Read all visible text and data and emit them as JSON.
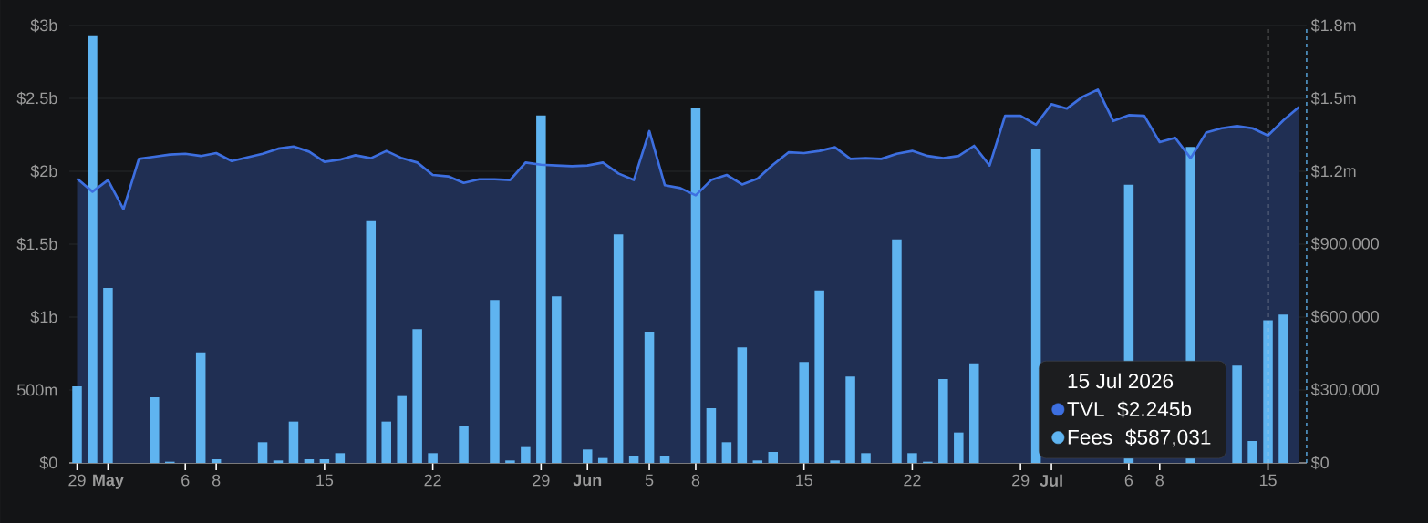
{
  "chart_data": {
    "type": "bar",
    "x": [
      "2026-04-29",
      "2026-04-30",
      "2026-05-01",
      "2026-05-02",
      "2026-05-03",
      "2026-05-04",
      "2026-05-05",
      "2026-05-06",
      "2026-05-07",
      "2026-05-08",
      "2026-05-09",
      "2026-05-10",
      "2026-05-11",
      "2026-05-12",
      "2026-05-13",
      "2026-05-14",
      "2026-05-15",
      "2026-05-16",
      "2026-05-17",
      "2026-05-18",
      "2026-05-19",
      "2026-05-20",
      "2026-05-21",
      "2026-05-22",
      "2026-05-23",
      "2026-05-24",
      "2026-05-25",
      "2026-05-26",
      "2026-05-27",
      "2026-05-28",
      "2026-05-29",
      "2026-05-30",
      "2026-05-31",
      "2026-06-01",
      "2026-06-02",
      "2026-06-03",
      "2026-06-04",
      "2026-06-05",
      "2026-06-06",
      "2026-06-07",
      "2026-06-08",
      "2026-06-09",
      "2026-06-10",
      "2026-06-11",
      "2026-06-12",
      "2026-06-13",
      "2026-06-14",
      "2026-06-15",
      "2026-06-16",
      "2026-06-17",
      "2026-06-18",
      "2026-06-19",
      "2026-06-20",
      "2026-06-21",
      "2026-06-22",
      "2026-06-23",
      "2026-06-24",
      "2026-06-25",
      "2026-06-26",
      "2026-06-27",
      "2026-06-28",
      "2026-06-29",
      "2026-06-30",
      "2026-07-01",
      "2026-07-02",
      "2026-07-03",
      "2026-07-04",
      "2026-07-05",
      "2026-07-06",
      "2026-07-07",
      "2026-07-08",
      "2026-07-09",
      "2026-07-10",
      "2026-07-11",
      "2026-07-12",
      "2026-07-13",
      "2026-07-14",
      "2026-07-15",
      "2026-07-16",
      "2026-07-17"
    ],
    "series": [
      {
        "name": "TVL",
        "type": "area",
        "color": "#3d6fe0",
        "values": [
          1950000000,
          1860000000,
          1940000000,
          1740000000,
          2085000000,
          2100000000,
          2115000000,
          2120000000,
          2105000000,
          2125000000,
          2070000000,
          2095000000,
          2120000000,
          2155000000,
          2170000000,
          2135000000,
          2065000000,
          2080000000,
          2110000000,
          2090000000,
          2140000000,
          2090000000,
          2060000000,
          1975000000,
          1965000000,
          1920000000,
          1945000000,
          1945000000,
          1940000000,
          2060000000,
          2045000000,
          2040000000,
          2035000000,
          2040000000,
          2060000000,
          1985000000,
          1940000000,
          2275000000,
          1905000000,
          1885000000,
          1835000000,
          1940000000,
          1975000000,
          1910000000,
          1950000000,
          2045000000,
          2130000000,
          2125000000,
          2140000000,
          2165000000,
          2085000000,
          2090000000,
          2085000000,
          2120000000,
          2140000000,
          2105000000,
          2090000000,
          2105000000,
          2175000000,
          2040000000,
          2380000000,
          2380000000,
          2320000000,
          2460000000,
          2430000000,
          2510000000,
          2560000000,
          2345000000,
          2385000000,
          2380000000,
          2200000000,
          2230000000,
          2090000000,
          2265000000,
          2295000000,
          2310000000,
          2295000000,
          2245000000,
          2350000000,
          2440000000
        ]
      },
      {
        "name": "Fees",
        "axis": "y2",
        "color": "#5fb4f0",
        "values": [
          315000,
          1760000,
          720000,
          0,
          0,
          270000,
          5000,
          0,
          455000,
          15000,
          0,
          0,
          85000,
          10000,
          170000,
          15000,
          15000,
          40000,
          0,
          995000,
          170000,
          275000,
          550000,
          40000,
          0,
          150000,
          0,
          670000,
          10000,
          65000,
          1430000,
          685000,
          0,
          55000,
          20000,
          940000,
          30000,
          540000,
          30000,
          0,
          1460000,
          225000,
          85000,
          475000,
          10000,
          45000,
          0,
          415000,
          710000,
          10000,
          355000,
          40000,
          0,
          920000,
          40000,
          5000,
          345000,
          125000,
          410000,
          null,
          null,
          null,
          1290000,
          null,
          null,
          null,
          null,
          null,
          1145000,
          null,
          null,
          null,
          1300000,
          null,
          null,
          400000,
          90000,
          587031,
          610000,
          null
        ]
      }
    ],
    "xlim": [
      "2026-04-28T12:00",
      "2026-07-17T12:00"
    ],
    "xticks": [
      {
        "value": "2026-04-29",
        "label": "29"
      },
      {
        "value": "2026-05-01",
        "label": "May"
      },
      {
        "value": "2026-05-06",
        "label": "6"
      },
      {
        "value": "2026-05-08",
        "label": "8"
      },
      {
        "value": "2026-05-15",
        "label": "15"
      },
      {
        "value": "2026-05-22",
        "label": "22"
      },
      {
        "value": "2026-05-29",
        "label": "29"
      },
      {
        "value": "2026-06-01",
        "label": "Jun"
      },
      {
        "value": "2026-06-05",
        "label": "5"
      },
      {
        "value": "2026-06-08",
        "label": "8"
      },
      {
        "value": "2026-06-15",
        "label": "15"
      },
      {
        "value": "2026-06-22",
        "label": "22"
      },
      {
        "value": "2026-06-29",
        "label": "29"
      },
      {
        "value": "2026-07-01",
        "label": "Jul"
      },
      {
        "value": "2026-07-06",
        "label": "6"
      },
      {
        "value": "2026-07-08",
        "label": "8"
      },
      {
        "value": "2026-07-15",
        "label": "15"
      }
    ],
    "ylim": [
      0,
      3000000000
    ],
    "yticks": [
      {
        "value": 0,
        "label": "$0"
      },
      {
        "value": 500000000,
        "label": "500m"
      },
      {
        "value": 1000000000,
        "label": "$1b"
      },
      {
        "value": 1500000000,
        "label": "$1.5b"
      },
      {
        "value": 2000000000,
        "label": "$2b"
      },
      {
        "value": 2500000000,
        "label": "$2.5b"
      },
      {
        "value": 3000000000,
        "label": "$3b"
      }
    ],
    "y2lim": [
      0,
      1800000
    ],
    "y2ticks": [
      {
        "value": 0,
        "label": "$0"
      },
      {
        "value": 300000,
        "label": "$300,000"
      },
      {
        "value": 600000,
        "label": "$600,000"
      },
      {
        "value": 900000,
        "label": "$900,000"
      },
      {
        "value": 1200000,
        "label": "$1.2m"
      },
      {
        "value": 1500000,
        "label": "$1.5m"
      },
      {
        "value": 1800000,
        "label": "$1.8m"
      }
    ],
    "grid": "y",
    "ref_lines": [
      {
        "axis": "x",
        "value": "2026-07-15",
        "color": "#d9d9d9",
        "line_style": "dashed"
      }
    ],
    "legend": "bottom right",
    "legend_title": "15 Jul 2026",
    "annotations": [
      "$2.245b",
      "$587,031"
    ]
  }
}
